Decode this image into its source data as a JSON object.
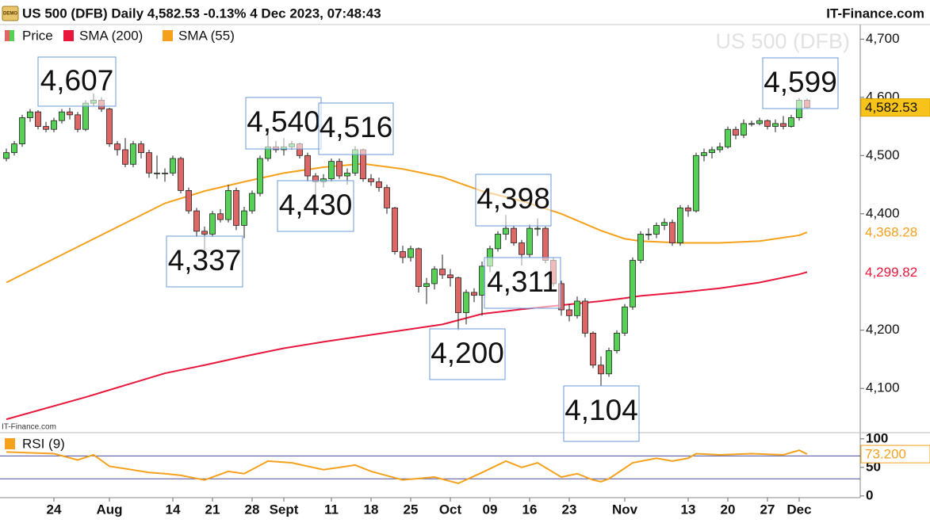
{
  "chart_data": {
    "type": "candlestick",
    "title": "US 500 (DFB) Daily 4,582.53 -0.13% 4 Dec 2023, 07:48:43",
    "badge": "DEMO",
    "source": "IT-Finance.com",
    "watermark": "US 500 (DFB)",
    "footer_source": "IT-Finance.com",
    "price_name": "Price",
    "up_color": "#55d155",
    "down_color": "#e06666",
    "price_label": "4,582.53",
    "ohlc": [
      [
        4495,
        4512,
        4490,
        4505
      ],
      [
        4505,
        4525,
        4500,
        4520
      ],
      [
        4520,
        4570,
        4515,
        4565
      ],
      [
        4565,
        4580,
        4558,
        4575
      ],
      [
        4575,
        4578,
        4545,
        4550
      ],
      [
        4550,
        4558,
        4540,
        4545
      ],
      [
        4545,
        4565,
        4540,
        4560
      ],
      [
        4560,
        4580,
        4555,
        4575
      ],
      [
        4575,
        4582,
        4562,
        4570
      ],
      [
        4570,
        4575,
        4540,
        4545
      ],
      [
        4545,
        4595,
        4542,
        4590
      ],
      [
        4590,
        4607,
        4585,
        4595
      ],
      [
        4595,
        4600,
        4575,
        4580
      ],
      [
        4580,
        4582,
        4515,
        4520
      ],
      [
        4520,
        4525,
        4500,
        4510
      ],
      [
        4510,
        4530,
        4480,
        4485
      ],
      [
        4485,
        4525,
        4480,
        4520
      ],
      [
        4520,
        4525,
        4495,
        4505
      ],
      [
        4505,
        4510,
        4462,
        4470
      ],
      [
        4470,
        4500,
        4460,
        4470
      ],
      [
        4470,
        4478,
        4455,
        4470
      ],
      [
        4470,
        4500,
        4465,
        4495
      ],
      [
        4495,
        4498,
        4435,
        4440
      ],
      [
        4440,
        4445,
        4400,
        4405
      ],
      [
        4405,
        4410,
        4360,
        4370
      ],
      [
        4370,
        4378,
        4337,
        4365
      ],
      [
        4365,
        4405,
        4360,
        4400
      ],
      [
        4400,
        4408,
        4385,
        4390
      ],
      [
        4390,
        4450,
        4385,
        4440
      ],
      [
        4440,
        4445,
        4372,
        4380
      ],
      [
        4380,
        4412,
        4358,
        4405
      ],
      [
        4405,
        4440,
        4400,
        4435
      ],
      [
        4435,
        4500,
        4430,
        4495
      ],
      [
        4495,
        4540,
        4490,
        4515
      ],
      [
        4515,
        4525,
        4505,
        4510
      ],
      [
        4510,
        4530,
        4500,
        4515
      ],
      [
        4515,
        4525,
        4510,
        4520
      ],
      [
        4520,
        4522,
        4495,
        4500
      ],
      [
        4500,
        4505,
        4455,
        4465
      ],
      [
        4465,
        4470,
        4430,
        4455
      ],
      [
        4455,
        4468,
        4445,
        4460
      ],
      [
        4460,
        4495,
        4455,
        4490
      ],
      [
        4490,
        4495,
        4460,
        4465
      ],
      [
        4465,
        4478,
        4450,
        4470
      ],
      [
        4470,
        4516,
        4465,
        4510
      ],
      [
        4510,
        4512,
        4455,
        4460
      ],
      [
        4460,
        4468,
        4448,
        4455
      ],
      [
        4455,
        4462,
        4438,
        4445
      ],
      [
        4445,
        4450,
        4400,
        4410
      ],
      [
        4410,
        4412,
        4330,
        4335
      ],
      [
        4335,
        4345,
        4315,
        4325
      ],
      [
        4325,
        4345,
        4318,
        4340
      ],
      [
        4340,
        4342,
        4265,
        4275
      ],
      [
        4275,
        4290,
        4245,
        4280
      ],
      [
        4280,
        4310,
        4270,
        4305
      ],
      [
        4305,
        4330,
        4288,
        4295
      ],
      [
        4295,
        4305,
        4275,
        4290
      ],
      [
        4290,
        4292,
        4200,
        4230
      ],
      [
        4230,
        4270,
        4210,
        4265
      ],
      [
        4265,
        4272,
        4248,
        4260
      ],
      [
        4260,
        4318,
        4225,
        4310
      ],
      [
        4310,
        4345,
        4300,
        4340
      ],
      [
        4340,
        4370,
        4335,
        4365
      ],
      [
        4365,
        4398,
        4355,
        4375
      ],
      [
        4375,
        4380,
        4345,
        4350
      ],
      [
        4350,
        4355,
        4311,
        4330
      ],
      [
        4330,
        4382,
        4325,
        4375
      ],
      [
        4375,
        4392,
        4362,
        4375
      ],
      [
        4375,
        4378,
        4315,
        4320
      ],
      [
        4320,
        4325,
        4275,
        4280
      ],
      [
        4280,
        4285,
        4225,
        4235
      ],
      [
        4235,
        4245,
        4215,
        4225
      ],
      [
        4225,
        4258,
        4220,
        4250
      ],
      [
        4250,
        4255,
        4188,
        4195
      ],
      [
        4195,
        4198,
        4135,
        4140
      ],
      [
        4140,
        4155,
        4104,
        4125
      ],
      [
        4125,
        4170,
        4120,
        4165
      ],
      [
        4165,
        4200,
        4160,
        4195
      ],
      [
        4195,
        4245,
        4190,
        4240
      ],
      [
        4240,
        4325,
        4235,
        4320
      ],
      [
        4320,
        4370,
        4315,
        4365
      ],
      [
        4365,
        4375,
        4355,
        4365
      ],
      [
        4365,
        4385,
        4358,
        4380
      ],
      [
        4380,
        4392,
        4372,
        4385
      ],
      [
        4385,
        4390,
        4345,
        4350
      ],
      [
        4350,
        4415,
        4345,
        4410
      ],
      [
        4410,
        4415,
        4395,
        4405
      ],
      [
        4405,
        4505,
        4402,
        4500
      ],
      [
        4500,
        4512,
        4490,
        4505
      ],
      [
        4505,
        4515,
        4495,
        4510
      ],
      [
        4510,
        4522,
        4505,
        4515
      ],
      [
        4515,
        4550,
        4512,
        4545
      ],
      [
        4545,
        4550,
        4528,
        4535
      ],
      [
        4535,
        4562,
        4530,
        4555
      ],
      [
        4555,
        4560,
        4550,
        4555
      ],
      [
        4555,
        4565,
        4552,
        4560
      ],
      [
        4560,
        4562,
        4545,
        4550
      ],
      [
        4550,
        4562,
        4540,
        4555
      ],
      [
        4555,
        4568,
        4545,
        4550
      ],
      [
        4550,
        4570,
        4548,
        4565
      ],
      [
        4565,
        4599,
        4560,
        4595
      ],
      [
        4595,
        4598,
        4580,
        4582.53
      ]
    ],
    "series": [
      {
        "name": "SMA (200)",
        "color": "#e8173c",
        "x": [
          0,
          10,
          20,
          25,
          30,
          35,
          40,
          45,
          50,
          55,
          60,
          65,
          70,
          75,
          78,
          80,
          85,
          90,
          95,
          100,
          101
        ],
        "values": [
          4047,
          4085,
          4126,
          4140,
          4155,
          4169,
          4180,
          4190,
          4200,
          4210,
          4228,
          4236,
          4243,
          4250,
          4255,
          4259,
          4265,
          4272,
          4282,
          4296,
          4299.82
        ],
        "value_labels": [
          null,
          null,
          null,
          null,
          null,
          null,
          null,
          null,
          null,
          null,
          null,
          null,
          null,
          null,
          null,
          null,
          null,
          null,
          null,
          null,
          "4,299.82"
        ]
      },
      {
        "name": "SMA (55)",
        "color": "#f5a11c",
        "x": [
          0,
          10,
          20,
          25,
          30,
          35,
          40,
          45,
          50,
          55,
          60,
          65,
          70,
          75,
          78,
          80,
          85,
          90,
          95,
          100,
          101
        ],
        "values": [
          4282,
          4350,
          4418,
          4439,
          4455,
          4470,
          4480,
          4486,
          4477,
          4463,
          4439,
          4422,
          4400,
          4371,
          4357,
          4353,
          4350,
          4350,
          4353,
          4363,
          4368.28
        ],
        "value_labels": [
          null,
          null,
          null,
          null,
          null,
          null,
          null,
          null,
          null,
          null,
          null,
          null,
          null,
          null,
          null,
          null,
          null,
          null,
          null,
          null,
          "4,368.28"
        ]
      }
    ],
    "xlim": [
      -0.8,
      107.7
    ],
    "ylim": [
      4024,
      4725
    ],
    "xticks": [
      {
        "value": 6,
        "label": "24"
      },
      {
        "value": 13,
        "label": "Aug"
      },
      {
        "value": 21,
        "label": "14"
      },
      {
        "value": 26,
        "label": "21"
      },
      {
        "value": 31,
        "label": "28"
      },
      {
        "value": 35,
        "label": "Sept"
      },
      {
        "value": 41,
        "label": "11"
      },
      {
        "value": 46,
        "label": "18"
      },
      {
        "value": 51,
        "label": "25"
      },
      {
        "value": 56,
        "label": "Oct"
      },
      {
        "value": 61,
        "label": "09"
      },
      {
        "value": 66,
        "label": "16"
      },
      {
        "value": 71,
        "label": "23"
      },
      {
        "value": 78,
        "label": "Nov"
      },
      {
        "value": 86,
        "label": "13"
      },
      {
        "value": 91,
        "label": "20"
      },
      {
        "value": 96,
        "label": "27"
      },
      {
        "value": 100,
        "label": "Dec"
      }
    ],
    "yticks": [
      {
        "value": 4100,
        "label": "4,100"
      },
      {
        "value": 4200,
        "label": "4,200"
      },
      {
        "value": 4300,
        "label": "4,300"
      },
      {
        "value": 4400,
        "label": "4,400"
      },
      {
        "value": 4500,
        "label": "4,500"
      },
      {
        "value": 4600,
        "label": "4,600"
      },
      {
        "value": 4700,
        "label": "4,700"
      }
    ],
    "annotations": [
      "4,607",
      "4,540",
      "4,516",
      "4,430",
      "4,337",
      "4,398",
      "4,311",
      "4,200",
      "4,104",
      "4,599"
    ],
    "rsi": {
      "name": "RSI (9)",
      "color": "#f5a11c",
      "level_color": "#4b4b9a",
      "x": [
        0,
        6,
        9,
        11,
        13,
        18,
        20,
        22,
        25,
        28,
        30,
        33,
        36,
        40,
        44,
        46,
        50,
        54,
        57,
        60,
        63,
        65,
        67,
        70,
        72,
        74,
        75,
        76,
        79,
        82,
        84,
        86,
        87,
        90,
        94,
        98,
        100,
        101
      ],
      "values": [
        77,
        74,
        63,
        72,
        52,
        41,
        39,
        36,
        28,
        43,
        39,
        61,
        58,
        46,
        54,
        43,
        28,
        33,
        22,
        41,
        61,
        50,
        58,
        33,
        39,
        28,
        25,
        30,
        58,
        66,
        61,
        66,
        74,
        72,
        74,
        72,
        80,
        73.2
      ],
      "value_labels": [
        null,
        null,
        null,
        null,
        null,
        null,
        null,
        null,
        null,
        null,
        null,
        null,
        null,
        null,
        null,
        null,
        null,
        null,
        null,
        null,
        null,
        null,
        null,
        null,
        null,
        null,
        null,
        null,
        null,
        null,
        null,
        null,
        null,
        null,
        null,
        null,
        null,
        "73.200"
      ],
      "ylim": [
        -3,
        108
      ],
      "yticks": [
        0,
        50,
        100
      ],
      "levels": [
        30,
        70
      ]
    }
  }
}
